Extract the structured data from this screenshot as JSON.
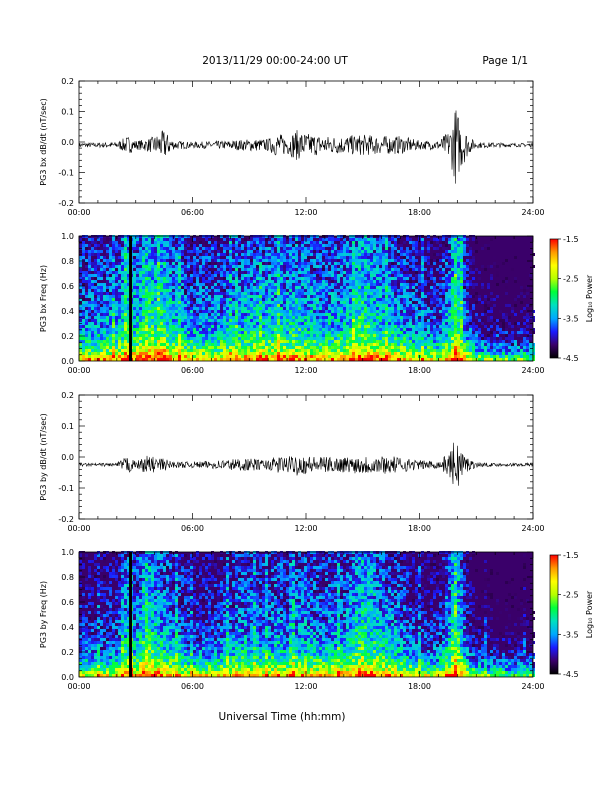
{
  "header": {
    "title": "2013/11/29  00:00-24:00 UT",
    "page": "Page 1/1"
  },
  "xaxis": {
    "label": "Universal Time (hh:mm)",
    "ticks": [
      "00:00",
      "06:00",
      "12:00",
      "18:00",
      "24:00"
    ],
    "range_hours": [
      0,
      24
    ]
  },
  "colors": {
    "trace": "#000000",
    "colorbar": [
      "#000000",
      "#3a006a",
      "#1a1aff",
      "#00a8ff",
      "#00e0c0",
      "#00ff3a",
      "#b6ff00",
      "#ffff00",
      "#ff9a00",
      "#ff0000"
    ]
  },
  "chart_data": [
    {
      "type": "line",
      "ylabel": "PG3 bx dB/dt (nT/sec)",
      "ylim": [
        -0.2,
        0.2
      ],
      "yticks": [
        "0.2",
        "0.1",
        "0.0",
        "-0.1",
        "-0.2"
      ],
      "baseline": -0.01,
      "x_hours": [
        0,
        1,
        2,
        2.6,
        3,
        3.6,
        4,
        4.5,
        5,
        6,
        7,
        8,
        9,
        10,
        10.5,
        11,
        11.5,
        12,
        13,
        14,
        15,
        16,
        17,
        18,
        19,
        19.6,
        19.9,
        20.2,
        20.6,
        21,
        22,
        23,
        24
      ],
      "amplitude": [
        0.008,
        0.008,
        0.01,
        0.03,
        0.015,
        0.02,
        0.03,
        0.05,
        0.015,
        0.01,
        0.012,
        0.015,
        0.02,
        0.02,
        0.04,
        0.03,
        0.05,
        0.04,
        0.03,
        0.03,
        0.035,
        0.03,
        0.03,
        0.015,
        0.015,
        0.05,
        0.13,
        0.08,
        0.03,
        0.01,
        0.008,
        0.006,
        0.006
      ]
    },
    {
      "type": "heatmap",
      "ylabel": "PG3 bx Freq (Hz)",
      "ylim": [
        0,
        1.0
      ],
      "yticks": [
        "1.0",
        "0.8",
        "0.6",
        "0.4",
        "0.2",
        "0.0"
      ],
      "colorbar": {
        "label": "Log₁₀ Power",
        "range": [
          -4.5,
          -1.5
        ],
        "ticks": [
          "-1.5",
          "-2.5",
          "-3.5",
          "-4.5"
        ]
      },
      "x_hours": [
        0,
        1,
        2,
        2.6,
        3,
        3.6,
        4,
        4.5,
        5,
        6,
        7,
        8,
        9,
        10,
        10.5,
        11,
        11.5,
        12,
        13,
        14,
        15,
        16,
        17,
        18,
        19,
        19.6,
        19.9,
        20.2,
        20.6,
        21,
        22,
        23,
        24
      ],
      "activity": [
        0.45,
        0.45,
        0.5,
        0.65,
        0.55,
        0.75,
        0.65,
        0.7,
        0.55,
        0.45,
        0.45,
        0.5,
        0.55,
        0.55,
        0.6,
        0.55,
        0.6,
        0.55,
        0.5,
        0.55,
        0.7,
        0.55,
        0.5,
        0.4,
        0.35,
        0.55,
        0.85,
        0.6,
        0.35,
        0.2,
        0.15,
        0.12,
        0.12
      ],
      "gaps_hours": [
        2.75
      ]
    },
    {
      "type": "line",
      "ylabel": "PG3 by dB/dt (nT/sec)",
      "ylim": [
        -0.2,
        0.2
      ],
      "yticks": [
        "0.2",
        "0.1",
        "0.0",
        "-0.1",
        "-0.2"
      ],
      "baseline": -0.025,
      "x_hours": [
        0,
        1,
        2,
        2.6,
        3,
        3.6,
        4,
        4.5,
        5,
        6,
        7,
        8,
        9,
        10,
        10.5,
        11,
        11.5,
        12,
        13,
        14,
        15,
        16,
        17,
        18,
        19,
        19.6,
        19.9,
        20.2,
        20.6,
        21,
        22,
        23,
        24
      ],
      "amplitude": [
        0.005,
        0.005,
        0.006,
        0.03,
        0.01,
        0.03,
        0.025,
        0.02,
        0.01,
        0.01,
        0.012,
        0.02,
        0.02,
        0.015,
        0.03,
        0.025,
        0.035,
        0.03,
        0.025,
        0.025,
        0.03,
        0.03,
        0.025,
        0.015,
        0.012,
        0.04,
        0.09,
        0.06,
        0.02,
        0.008,
        0.005,
        0.005,
        0.005
      ]
    },
    {
      "type": "heatmap",
      "ylabel": "PG3 by Freq (Hz)",
      "ylim": [
        0,
        1.0
      ],
      "yticks": [
        "1.0",
        "0.8",
        "0.6",
        "0.4",
        "0.2",
        "0.0"
      ],
      "colorbar": {
        "label": "Log₁₀ Power",
        "range": [
          -4.5,
          -1.5
        ],
        "ticks": [
          "-1.5",
          "-2.5",
          "-3.5",
          "-4.5"
        ]
      },
      "x_hours": [
        0,
        1,
        2,
        2.6,
        3,
        3.6,
        4,
        4.5,
        5,
        6,
        7,
        8,
        9,
        10,
        10.5,
        11,
        11.5,
        12,
        13,
        14,
        15,
        16,
        17,
        18,
        19,
        19.6,
        19.9,
        20.2,
        20.6,
        21,
        22,
        23,
        24
      ],
      "activity": [
        0.3,
        0.3,
        0.35,
        0.6,
        0.45,
        0.75,
        0.6,
        0.55,
        0.45,
        0.35,
        0.35,
        0.45,
        0.5,
        0.45,
        0.5,
        0.45,
        0.5,
        0.5,
        0.45,
        0.5,
        0.7,
        0.55,
        0.45,
        0.3,
        0.3,
        0.55,
        0.85,
        0.55,
        0.3,
        0.15,
        0.12,
        0.1,
        0.1
      ],
      "gaps_hours": [
        2.75
      ]
    }
  ]
}
